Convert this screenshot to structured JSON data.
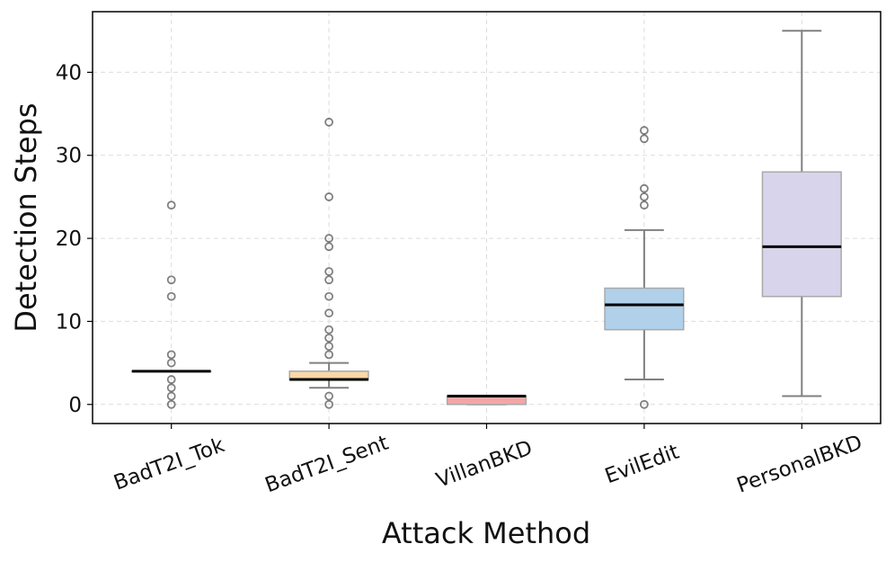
{
  "chart_data": {
    "type": "box",
    "title": "",
    "xlabel": "Attack Method",
    "ylabel": "Detection Steps",
    "ylim": [
      -2.3,
      47.3
    ],
    "yticks": [
      0,
      10,
      20,
      30,
      40
    ],
    "grid": true,
    "categories": [
      "BadT2I_Tok",
      "BadT2I_Sent",
      "VillanBKD",
      "EvilEdit",
      "PersonalBKD"
    ],
    "boxes": [
      {
        "name": "BadT2I_Tok",
        "color": "#ffe1b4",
        "q1": 4,
        "median": 4,
        "q3": 4,
        "whisker_low": 4,
        "whisker_high": 4,
        "outliers": [
          0,
          1,
          2,
          3,
          5,
          6,
          13,
          15,
          24
        ]
      },
      {
        "name": "BadT2I_Sent",
        "color": "#fdd7a8",
        "q1": 3,
        "median": 3,
        "q3": 4,
        "whisker_low": 2,
        "whisker_high": 5,
        "outliers": [
          0,
          1,
          6,
          7,
          8,
          9,
          11,
          13,
          15,
          16,
          19,
          20,
          25,
          34
        ]
      },
      {
        "name": "VillanBKD",
        "color": "#f4a6a6",
        "q1": 0,
        "median": 1,
        "q3": 1,
        "whisker_low": 0,
        "whisker_high": 1,
        "outliers": []
      },
      {
        "name": "EvilEdit",
        "color": "#b0d1e9",
        "q1": 9,
        "median": 12,
        "q3": 14,
        "whisker_low": 3,
        "whisker_high": 21,
        "outliers": [
          0,
          24,
          25,
          26,
          32,
          33
        ]
      },
      {
        "name": "PersonalBKD",
        "color": "#d8d4eb",
        "q1": 13,
        "median": 19,
        "q3": 28,
        "whisker_low": 1,
        "whisker_high": 45,
        "outliers": []
      }
    ]
  }
}
